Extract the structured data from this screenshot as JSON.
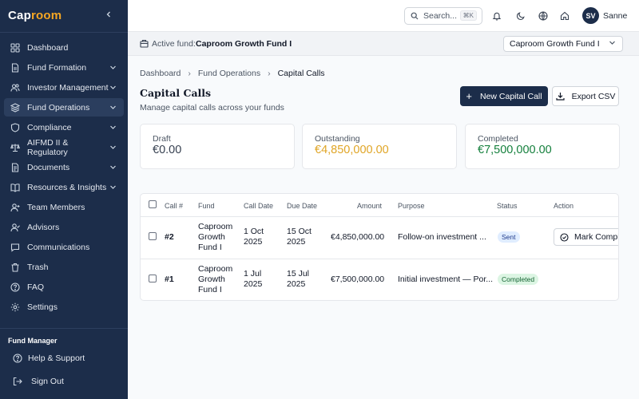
{
  "app": {
    "logo_main": "Cap",
    "logo_accent": "room"
  },
  "sidebar": {
    "items": [
      {
        "label": "Dashboard",
        "icon": "grid-icon",
        "chevron": false
      },
      {
        "label": "Fund Formation",
        "icon": "document-icon",
        "chevron": true
      },
      {
        "label": "Investor Management",
        "icon": "users-icon",
        "chevron": true
      },
      {
        "label": "Fund Operations",
        "icon": "layers-icon",
        "chevron": true,
        "active": true
      },
      {
        "label": "Compliance",
        "icon": "shield-icon",
        "chevron": true
      },
      {
        "label": "AIFMD II & Regulatory",
        "icon": "scale-icon",
        "chevron": true
      },
      {
        "label": "Documents",
        "icon": "folder-icon",
        "chevron": true
      },
      {
        "label": "Resources & Insights",
        "icon": "book-icon",
        "chevron": true
      },
      {
        "label": "Team Members",
        "icon": "user-plus-icon",
        "chevron": false
      },
      {
        "label": "Advisors",
        "icon": "user-check-icon",
        "chevron": false
      },
      {
        "label": "Communications",
        "icon": "message-icon",
        "chevron": false
      },
      {
        "label": "Trash",
        "icon": "trash-icon",
        "chevron": false
      },
      {
        "label": "FAQ",
        "icon": "help-circle-icon",
        "chevron": false
      },
      {
        "label": "Settings",
        "icon": "gear-icon",
        "chevron": false
      }
    ],
    "role": "Fund Manager",
    "help": "Help & Support",
    "sign_out": "Sign Out"
  },
  "topbar": {
    "search_placeholder": "Search...",
    "search_shortcut": "⌘K",
    "avatar_initials": "SV",
    "username": "Sanne"
  },
  "fundbar": {
    "label": "Active fund:",
    "fund_name": "Caproom Growth Fund I",
    "select_value": "Caproom Growth Fund I"
  },
  "breadcrumb": [
    "Dashboard",
    "Fund Operations",
    "Capital Calls"
  ],
  "page": {
    "title": "Capital Calls",
    "subtitle": "Manage capital calls across your funds",
    "new_button": "New Capital Call",
    "export_button": "Export CSV"
  },
  "cards": [
    {
      "label": "Draft",
      "value": "€0.00",
      "color": "#374151"
    },
    {
      "label": "Outstanding",
      "value": "€4,850,000.00",
      "color": "#e0a526"
    },
    {
      "label": "Completed",
      "value": "€7,500,000.00",
      "color": "#15803d"
    }
  ],
  "table": {
    "headers": [
      "Call #",
      "Fund",
      "Call Date",
      "Due Date",
      "Amount",
      "Purpose",
      "Status",
      "Action"
    ],
    "rows": [
      {
        "call": "#2",
        "fund": [
          "Caproom",
          "Growth",
          "Fund I"
        ],
        "call_date": [
          "1 Oct",
          "2025"
        ],
        "due_date": [
          "15 Oct",
          "2025"
        ],
        "amount": "€4,850,000.00",
        "purpose": "Follow-on investment ...",
        "status": "Sent",
        "action": "Mark Complete"
      },
      {
        "call": "#1",
        "fund": [
          "Caproom",
          "Growth",
          "Fund I"
        ],
        "call_date": [
          "1 Jul",
          "2025"
        ],
        "due_date": [
          "15 Jul",
          "2025"
        ],
        "amount": "€7,500,000.00",
        "purpose": "Initial investment — Por...",
        "status": "Completed",
        "action": ""
      }
    ]
  }
}
